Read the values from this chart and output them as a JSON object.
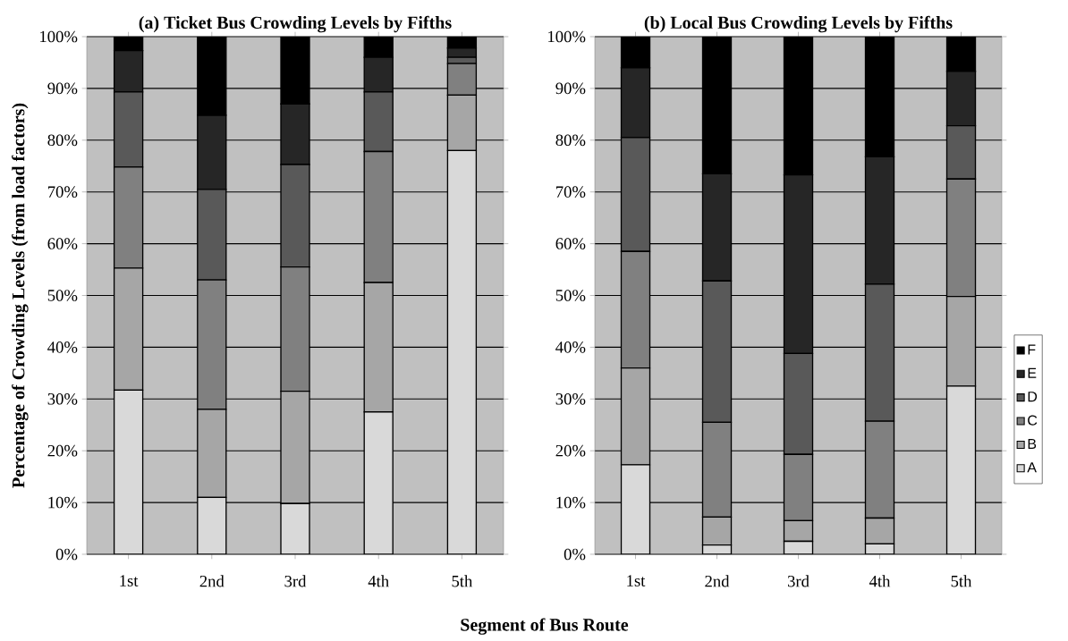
{
  "chart_data": [
    {
      "type": "bar",
      "stacked": true,
      "title": "(a) Ticket Bus Crowding Levels by Fifths",
      "ylabel": "Percentage of Crowding Levels (from load factors)",
      "xlabel": "Segment of Bus Route",
      "categories": [
        "1st",
        "2nd",
        "3rd",
        "4th",
        "5th"
      ],
      "ylim": [
        0,
        100
      ],
      "yticks": [
        {
          "value": 0,
          "label": "0%"
        },
        {
          "value": 10,
          "label": "10%"
        },
        {
          "value": 20,
          "label": "20%"
        },
        {
          "value": 30,
          "label": "30%"
        },
        {
          "value": 40,
          "label": "40%"
        },
        {
          "value": 50,
          "label": "50%"
        },
        {
          "value": 60,
          "label": "60%"
        },
        {
          "value": 70,
          "label": "70%"
        },
        {
          "value": 80,
          "label": "80%"
        },
        {
          "value": 90,
          "label": "90%"
        },
        {
          "value": 100,
          "label": "100%"
        }
      ],
      "grid": "y",
      "legend": false,
      "series": [
        {
          "color": "#d9d9d9",
          "values": [
            31.7,
            11,
            9.8,
            27.5,
            78
          ]
        },
        {
          "color": "#a6a6a6",
          "values": [
            23.6,
            17,
            21.7,
            25,
            10.7
          ]
        },
        {
          "color": "#808080",
          "values": [
            19.5,
            25,
            24,
            25.3,
            6.1
          ]
        },
        {
          "color": "#595959",
          "values": [
            14.5,
            17.5,
            19.8,
            11.5,
            1.2
          ]
        },
        {
          "color": "#262626",
          "values": [
            8,
            14.3,
            11.7,
            6.7,
            1.8
          ]
        },
        {
          "color": "#000000",
          "values": [
            2.7,
            15.2,
            13,
            4,
            2.2
          ]
        }
      ]
    },
    {
      "type": "bar",
      "stacked": true,
      "title": "(b) Local Bus Crowding Levels by Fifths",
      "categories": [
        "1st",
        "2nd",
        "3rd",
        "4th",
        "5th"
      ],
      "ylim": [
        0,
        100
      ],
      "yticks": [
        {
          "value": 0,
          "label": "0%"
        },
        {
          "value": 10,
          "label": "10%"
        },
        {
          "value": 20,
          "label": "20%"
        },
        {
          "value": 30,
          "label": "30%"
        },
        {
          "value": 40,
          "label": "40%"
        },
        {
          "value": 50,
          "label": "50%"
        },
        {
          "value": 60,
          "label": "60%"
        },
        {
          "value": 70,
          "label": "70%"
        },
        {
          "value": 80,
          "label": "80%"
        },
        {
          "value": 90,
          "label": "90%"
        },
        {
          "value": 100,
          "label": "100%"
        }
      ],
      "grid": "y",
      "legend": "right",
      "series": [
        {
          "name": "A",
          "color": "#d9d9d9",
          "values": [
            17.3,
            1.8,
            2.5,
            2,
            32.5
          ]
        },
        {
          "name": "B",
          "color": "#a6a6a6",
          "values": [
            18.7,
            5.4,
            4,
            5,
            17.3
          ]
        },
        {
          "name": "C",
          "color": "#808080",
          "values": [
            22.5,
            18.3,
            12.8,
            18.7,
            22.7
          ]
        },
        {
          "name": "D",
          "color": "#595959",
          "values": [
            22,
            27.3,
            19.5,
            26.5,
            10.3
          ]
        },
        {
          "name": "E",
          "color": "#262626",
          "values": [
            13.5,
            20.7,
            34.5,
            24.6,
            10.5
          ]
        },
        {
          "name": "F",
          "color": "#000000",
          "values": [
            6,
            26.5,
            26.7,
            23.2,
            6.7
          ]
        }
      ]
    }
  ]
}
